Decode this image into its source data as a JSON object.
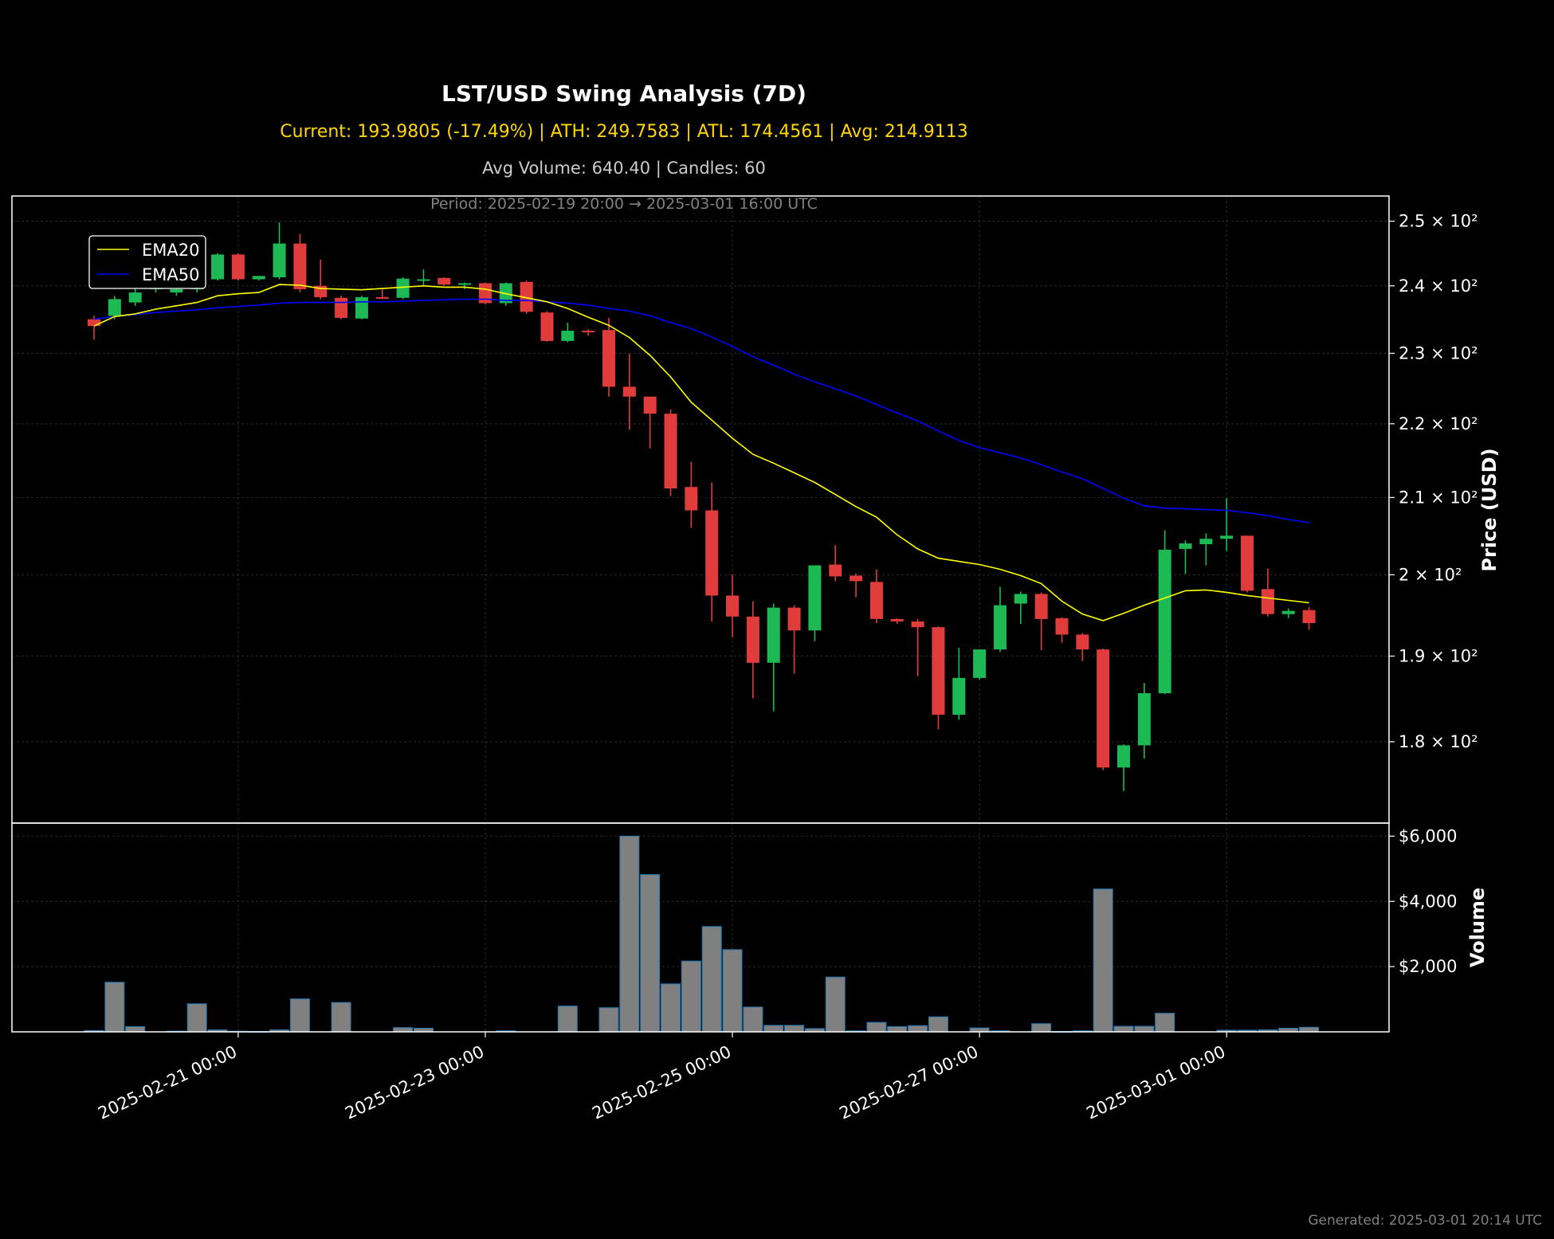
{
  "header": {
    "title": "LST/USD Swing Analysis (7D)",
    "subtitle": "Current: 193.9805 (-17.49%) | ATH: 249.7583 | ATL: 174.4561 | Avg: 214.9113",
    "stats": "Avg Volume: 640.40 | Candles: 60",
    "period": "Period: 2025-02-19 20:00 → 2025-03-01 16:00 UTC"
  },
  "footer": {
    "generated": "Generated: 2025-03-01 20:14 UTC"
  },
  "colors": {
    "up": "#1DB954",
    "down": "#E03C3C",
    "ema20": "#FFFF00",
    "ema50": "#0000FF",
    "volume_bar": "#808080",
    "volume_edge": "#1f77b4",
    "grid": "#2a2a2a",
    "frame": "#ffffff"
  },
  "chart_data": {
    "type": "candlestick",
    "price_axis": {
      "label": "Price (USD)",
      "scale": "log",
      "ylim": [
        171,
        254
      ],
      "ticks": [
        {
          "value": 180,
          "label": "1.8 × 10²"
        },
        {
          "value": 190,
          "label": "1.9 × 10²"
        },
        {
          "value": 200,
          "label": "2 × 10²"
        },
        {
          "value": 210,
          "label": "2.1 × 10²"
        },
        {
          "value": 220,
          "label": "2.2 × 10²"
        },
        {
          "value": 230,
          "label": "2.3 × 10²"
        },
        {
          "value": 240,
          "label": "2.4 × 10²"
        },
        {
          "value": 250,
          "label": "2.5 × 10²"
        }
      ]
    },
    "volume_axis": {
      "label": "Volume",
      "ylim": [
        0,
        6400
      ],
      "ticks": [
        {
          "value": 2000,
          "label": "$2,000"
        },
        {
          "value": 4000,
          "label": "$4,000"
        },
        {
          "value": 6000,
          "label": "$6,000"
        }
      ]
    },
    "x_axis": {
      "start": "2025-02-19 20:00",
      "interval_hours": 4,
      "ticks": [
        {
          "index": 7,
          "label": "2025-02-21 00:00"
        },
        {
          "index": 19,
          "label": "2025-02-23 00:00"
        },
        {
          "index": 31,
          "label": "2025-02-25 00:00"
        },
        {
          "index": 43,
          "label": "2025-02-27 00:00"
        },
        {
          "index": 55,
          "label": "2025-03-01 00:00"
        }
      ]
    },
    "legend": {
      "position": "upper-left",
      "entries": [
        {
          "name": "EMA20",
          "color": "#FFFF00"
        },
        {
          "name": "EMA50",
          "color": "#0000FF"
        }
      ]
    },
    "grid": true,
    "candles": [
      {
        "o": 235.0,
        "h": 235.5,
        "l": 232.0,
        "c": 234.0
      },
      {
        "o": 235.5,
        "h": 238.5,
        "l": 235.0,
        "c": 238.0
      },
      {
        "o": 237.5,
        "h": 240.0,
        "l": 237.0,
        "c": 239.0
      },
      {
        "o": 239.5,
        "h": 241.5,
        "l": 239.0,
        "c": 241.0
      },
      {
        "o": 239.0,
        "h": 240.0,
        "l": 238.5,
        "c": 239.5
      },
      {
        "o": 239.5,
        "h": 240.5,
        "l": 239.0,
        "c": 239.8
      },
      {
        "o": 241.0,
        "h": 245.0,
        "l": 240.8,
        "c": 244.8
      },
      {
        "o": 244.8,
        "h": 245.0,
        "l": 240.8,
        "c": 241.0
      },
      {
        "o": 241.0,
        "h": 241.5,
        "l": 240.8,
        "c": 241.5
      },
      {
        "o": 241.3,
        "h": 249.8,
        "l": 241.0,
        "c": 246.5
      },
      {
        "o": 246.5,
        "h": 248.0,
        "l": 239.0,
        "c": 239.5
      },
      {
        "o": 240.0,
        "h": 244.0,
        "l": 238.0,
        "c": 238.3
      },
      {
        "o": 238.2,
        "h": 238.5,
        "l": 235.0,
        "c": 235.2
      },
      {
        "o": 235.1,
        "h": 238.5,
        "l": 235.0,
        "c": 238.3
      },
      {
        "o": 238.3,
        "h": 239.5,
        "l": 238.0,
        "c": 238.2
      },
      {
        "o": 238.2,
        "h": 241.3,
        "l": 238.0,
        "c": 241.1
      },
      {
        "o": 240.9,
        "h": 242.5,
        "l": 240.0,
        "c": 241.0
      },
      {
        "o": 241.2,
        "h": 241.3,
        "l": 240.0,
        "c": 240.2
      },
      {
        "o": 240.2,
        "h": 240.5,
        "l": 239.5,
        "c": 240.4
      },
      {
        "o": 240.4,
        "h": 240.5,
        "l": 237.2,
        "c": 237.4
      },
      {
        "o": 237.4,
        "h": 240.5,
        "l": 237.0,
        "c": 240.4
      },
      {
        "o": 240.6,
        "h": 240.8,
        "l": 235.8,
        "c": 236.1
      },
      {
        "o": 236.0,
        "h": 236.2,
        "l": 231.7,
        "c": 231.8
      },
      {
        "o": 231.8,
        "h": 234.5,
        "l": 231.6,
        "c": 233.3
      },
      {
        "o": 233.3,
        "h": 233.5,
        "l": 232.6,
        "c": 233.2
      },
      {
        "o": 233.4,
        "h": 235.2,
        "l": 223.8,
        "c": 225.2
      },
      {
        "o": 225.2,
        "h": 229.9,
        "l": 219.2,
        "c": 223.8
      },
      {
        "o": 223.8,
        "h": 223.8,
        "l": 216.6,
        "c": 221.4
      },
      {
        "o": 221.4,
        "h": 222.0,
        "l": 210.2,
        "c": 211.2
      },
      {
        "o": 211.4,
        "h": 214.8,
        "l": 206.0,
        "c": 208.3
      },
      {
        "o": 208.3,
        "h": 212.0,
        "l": 194.2,
        "c": 197.4
      },
      {
        "o": 197.4,
        "h": 200.0,
        "l": 192.3,
        "c": 194.8
      },
      {
        "o": 194.8,
        "h": 196.7,
        "l": 185.0,
        "c": 189.2
      },
      {
        "o": 189.2,
        "h": 196.4,
        "l": 183.5,
        "c": 195.9
      },
      {
        "o": 195.9,
        "h": 196.2,
        "l": 187.9,
        "c": 193.1
      },
      {
        "o": 193.1,
        "h": 200.5,
        "l": 191.8,
        "c": 201.2
      },
      {
        "o": 201.3,
        "h": 203.8,
        "l": 199.2,
        "c": 199.8
      },
      {
        "o": 199.9,
        "h": 200.2,
        "l": 197.2,
        "c": 199.2
      },
      {
        "o": 199.1,
        "h": 200.7,
        "l": 194.0,
        "c": 194.5
      },
      {
        "o": 194.5,
        "h": 194.6,
        "l": 193.9,
        "c": 194.2
      },
      {
        "o": 194.2,
        "h": 194.5,
        "l": 187.6,
        "c": 193.5
      },
      {
        "o": 193.5,
        "h": 193.6,
        "l": 181.4,
        "c": 183.1
      },
      {
        "o": 183.1,
        "h": 191.0,
        "l": 182.5,
        "c": 187.4
      },
      {
        "o": 187.4,
        "h": 190.8,
        "l": 187.2,
        "c": 190.8
      },
      {
        "o": 190.8,
        "h": 198.5,
        "l": 190.5,
        "c": 196.2
      },
      {
        "o": 196.4,
        "h": 197.9,
        "l": 193.9,
        "c": 197.6
      },
      {
        "o": 197.6,
        "h": 197.8,
        "l": 190.7,
        "c": 194.5
      },
      {
        "o": 194.6,
        "h": 194.7,
        "l": 191.6,
        "c": 192.6
      },
      {
        "o": 192.6,
        "h": 192.8,
        "l": 189.4,
        "c": 190.8
      },
      {
        "o": 190.8,
        "h": 190.9,
        "l": 176.8,
        "c": 177.1
      },
      {
        "o": 177.1,
        "h": 179.7,
        "l": 174.5,
        "c": 179.6
      },
      {
        "o": 179.6,
        "h": 186.8,
        "l": 178.1,
        "c": 185.6
      },
      {
        "o": 185.6,
        "h": 205.7,
        "l": 185.5,
        "c": 203.2
      },
      {
        "o": 203.3,
        "h": 204.4,
        "l": 200.1,
        "c": 204.0
      },
      {
        "o": 203.9,
        "h": 205.3,
        "l": 201.2,
        "c": 204.6
      },
      {
        "o": 204.6,
        "h": 209.9,
        "l": 203.0,
        "c": 205.0
      },
      {
        "o": 205.0,
        "h": 205.0,
        "l": 197.8,
        "c": 198.0
      },
      {
        "o": 198.2,
        "h": 200.8,
        "l": 194.8,
        "c": 195.1
      },
      {
        "o": 195.1,
        "h": 195.8,
        "l": 194.6,
        "c": 195.5
      },
      {
        "o": 195.6,
        "h": 196.0,
        "l": 193.2,
        "c": 194.0
      }
    ],
    "volume": [
      40,
      1520,
      160,
      0,
      20,
      860,
      60,
      20,
      10,
      60,
      1010,
      0,
      900,
      0,
      0,
      130,
      110,
      0,
      0,
      0,
      30,
      0,
      0,
      790,
      0,
      740,
      6000,
      4820,
      1470,
      2170,
      3230,
      2520,
      760,
      200,
      200,
      100,
      1680,
      30,
      290,
      160,
      190,
      460,
      0,
      120,
      30,
      0,
      250,
      10,
      30,
      4380,
      170,
      170,
      570,
      0,
      0,
      50,
      50,
      60,
      110,
      140
    ],
    "ema20": [
      234.0,
      235.4,
      235.8,
      236.5,
      237.0,
      237.5,
      238.5,
      238.8,
      239.0,
      240.2,
      240.1,
      239.6,
      239.5,
      239.4,
      239.6,
      239.8,
      240.0,
      239.8,
      239.8,
      239.5,
      238.8,
      238.2,
      237.6,
      236.6,
      235.3,
      234.1,
      232.3,
      229.7,
      226.6,
      223.0,
      220.5,
      218.0,
      215.8,
      214.6,
      213.3,
      212.0,
      210.4,
      208.8,
      207.4,
      205.1,
      203.3,
      202.1,
      201.7,
      201.3,
      200.7,
      199.9,
      198.9,
      196.7,
      195.1,
      194.3,
      195.2,
      196.2,
      197.1,
      198.0,
      198.1,
      197.8,
      197.4,
      197.1,
      196.8,
      196.5
    ],
    "ema50": [
      235.0,
      235.4,
      235.7,
      236.0,
      236.2,
      236.4,
      236.7,
      236.9,
      237.1,
      237.4,
      237.5,
      237.5,
      237.5,
      237.6,
      237.6,
      237.7,
      237.8,
      237.9,
      238.0,
      238.0,
      237.8,
      237.8,
      237.6,
      237.4,
      237.1,
      236.6,
      236.2,
      235.5,
      234.5,
      233.6,
      232.4,
      231.0,
      229.5,
      228.3,
      227.0,
      225.9,
      224.9,
      223.9,
      222.7,
      221.5,
      220.4,
      219.0,
      217.7,
      216.7,
      216.0,
      215.3,
      214.4,
      213.4,
      212.5,
      211.2,
      209.9,
      208.9,
      208.6,
      208.5,
      208.4,
      208.3,
      208.0,
      207.6,
      207.1,
      206.7
    ]
  }
}
